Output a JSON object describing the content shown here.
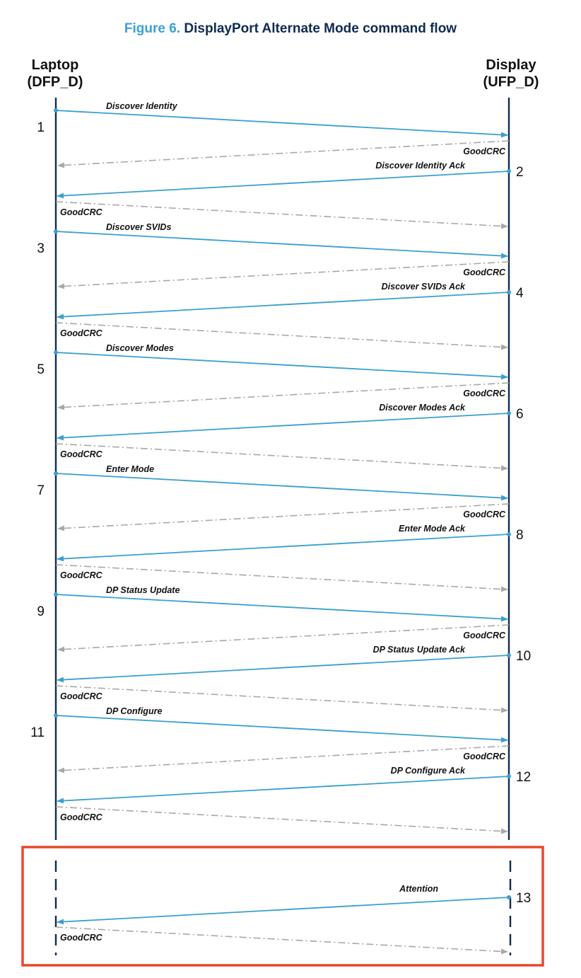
{
  "title": {
    "figure_number": "Figure 6.",
    "text": "DisplayPort Alternate Mode command flow"
  },
  "actors": {
    "left": {
      "name": "Laptop",
      "role": "(DFP_D)"
    },
    "right": {
      "name": "Display",
      "role": "(UFP_D)"
    }
  },
  "colors": {
    "message": "#3a9fd0",
    "ack": "#a8a8a8",
    "lifeline": "#0f2a52",
    "highlight_box": "#e8492a",
    "title_number": "#3aa0d8",
    "title_text": "#0f2a52"
  },
  "ack_label": "GoodCRC",
  "steps": [
    {
      "number": "1",
      "label": "Discover Identity",
      "direction": "left-to-right"
    },
    {
      "number": "2",
      "label": "Discover Identity Ack",
      "direction": "right-to-left"
    },
    {
      "number": "3",
      "label": "Discover SVIDs",
      "direction": "left-to-right"
    },
    {
      "number": "4",
      "label": "Discover SVIDs Ack",
      "direction": "right-to-left"
    },
    {
      "number": "5",
      "label": "Discover Modes",
      "direction": "left-to-right"
    },
    {
      "number": "6",
      "label": "Discover Modes Ack",
      "direction": "right-to-left"
    },
    {
      "number": "7",
      "label": "Enter Mode",
      "direction": "left-to-right"
    },
    {
      "number": "8",
      "label": "Enter Mode Ack",
      "direction": "right-to-left"
    },
    {
      "number": "9",
      "label": "DP Status Update",
      "direction": "left-to-right"
    },
    {
      "number": "10",
      "label": "DP Status Update Ack",
      "direction": "right-to-left"
    },
    {
      "number": "11",
      "label": "DP Configure",
      "direction": "left-to-right"
    },
    {
      "number": "12",
      "label": "DP Configure Ack",
      "direction": "right-to-left"
    }
  ],
  "highlighted_step": {
    "number": "13",
    "label": "Attention",
    "direction": "right-to-left"
  }
}
